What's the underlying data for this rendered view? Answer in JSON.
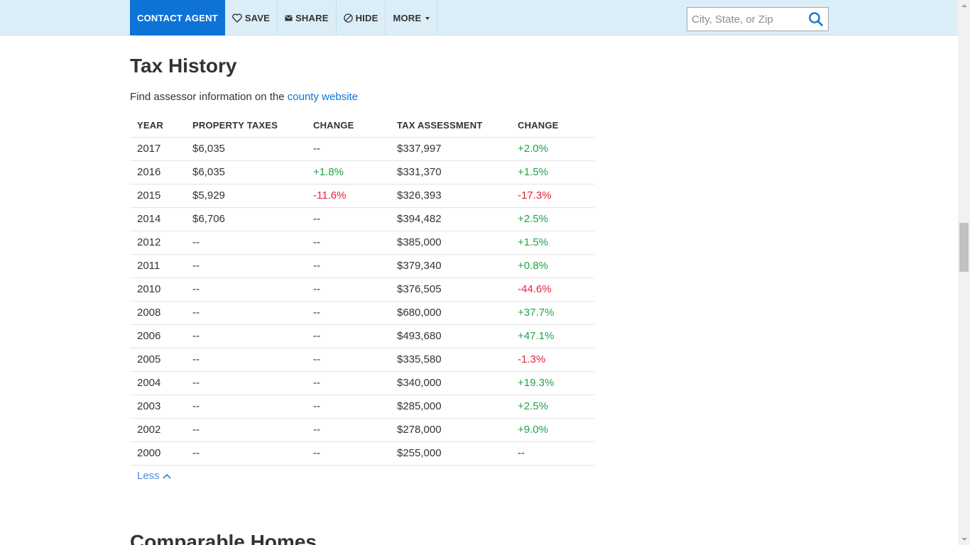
{
  "toolbar": {
    "contact_label": "CONTACT AGENT",
    "save_label": "SAVE",
    "share_label": "SHARE",
    "hide_label": "HIDE",
    "more_label": "MORE"
  },
  "search": {
    "placeholder": "City, State, or Zip"
  },
  "section": {
    "title": "Tax History",
    "subtitle_prefix": "Find assessor information on the ",
    "subtitle_link": "county website"
  },
  "table": {
    "headers": [
      "YEAR",
      "PROPERTY TAXES",
      "CHANGE",
      "TAX ASSESSMENT",
      "CHANGE"
    ],
    "rows": [
      {
        "year": "2017",
        "taxes": "$6,035",
        "tax_change": "--",
        "tax_change_dir": "neutral",
        "assessment": "$337,997",
        "assess_change": "+2.0%",
        "assess_change_dir": "pos"
      },
      {
        "year": "2016",
        "taxes": "$6,035",
        "tax_change": "+1.8%",
        "tax_change_dir": "pos",
        "assessment": "$331,370",
        "assess_change": "+1.5%",
        "assess_change_dir": "pos"
      },
      {
        "year": "2015",
        "taxes": "$5,929",
        "tax_change": "-11.6%",
        "tax_change_dir": "neg",
        "assessment": "$326,393",
        "assess_change": "-17.3%",
        "assess_change_dir": "neg"
      },
      {
        "year": "2014",
        "taxes": "$6,706",
        "tax_change": "--",
        "tax_change_dir": "neutral",
        "assessment": "$394,482",
        "assess_change": "+2.5%",
        "assess_change_dir": "pos"
      },
      {
        "year": "2012",
        "taxes": "--",
        "tax_change": "--",
        "tax_change_dir": "neutral",
        "assessment": "$385,000",
        "assess_change": "+1.5%",
        "assess_change_dir": "pos"
      },
      {
        "year": "2011",
        "taxes": "--",
        "tax_change": "--",
        "tax_change_dir": "neutral",
        "assessment": "$379,340",
        "assess_change": "+0.8%",
        "assess_change_dir": "pos"
      },
      {
        "year": "2010",
        "taxes": "--",
        "tax_change": "--",
        "tax_change_dir": "neutral",
        "assessment": "$376,505",
        "assess_change": "-44.6%",
        "assess_change_dir": "neg"
      },
      {
        "year": "2008",
        "taxes": "--",
        "tax_change": "--",
        "tax_change_dir": "neutral",
        "assessment": "$680,000",
        "assess_change": "+37.7%",
        "assess_change_dir": "pos"
      },
      {
        "year": "2006",
        "taxes": "--",
        "tax_change": "--",
        "tax_change_dir": "neutral",
        "assessment": "$493,680",
        "assess_change": "+47.1%",
        "assess_change_dir": "pos"
      },
      {
        "year": "2005",
        "taxes": "--",
        "tax_change": "--",
        "tax_change_dir": "neutral",
        "assessment": "$335,580",
        "assess_change": "-1.3%",
        "assess_change_dir": "neg"
      },
      {
        "year": "2004",
        "taxes": "--",
        "tax_change": "--",
        "tax_change_dir": "neutral",
        "assessment": "$340,000",
        "assess_change": "+19.3%",
        "assess_change_dir": "pos"
      },
      {
        "year": "2003",
        "taxes": "--",
        "tax_change": "--",
        "tax_change_dir": "neutral",
        "assessment": "$285,000",
        "assess_change": "+2.5%",
        "assess_change_dir": "pos"
      },
      {
        "year": "2002",
        "taxes": "--",
        "tax_change": "--",
        "tax_change_dir": "neutral",
        "assessment": "$278,000",
        "assess_change": "+9.0%",
        "assess_change_dir": "pos"
      },
      {
        "year": "2000",
        "taxes": "--",
        "tax_change": "--",
        "tax_change_dir": "neutral",
        "assessment": "$255,000",
        "assess_change": "--",
        "assess_change_dir": "neutral"
      }
    ]
  },
  "less_label": "Less",
  "next_section_title": "Comparable Homes",
  "icons": {
    "save": "heart-icon",
    "share": "envelope-icon",
    "hide": "hide-icon",
    "search": "search-icon",
    "less": "chevron-up-icon"
  },
  "colors": {
    "primary": "#0e73d6",
    "topbar_bg": "#dbeef8",
    "positive": "#21a347",
    "negative": "#e4243b",
    "link": "#0e73d6",
    "less_link": "#4a90e2"
  }
}
